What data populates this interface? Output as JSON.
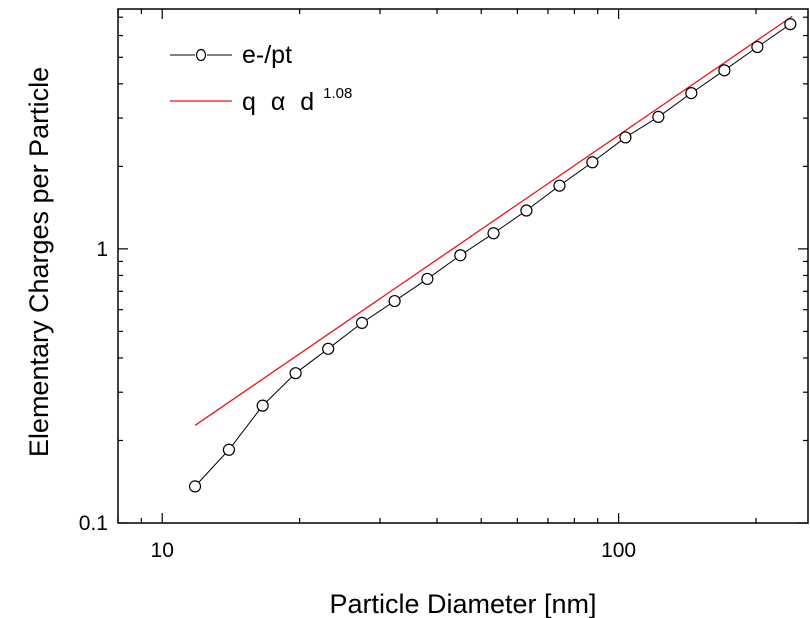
{
  "chart_data": {
    "type": "line",
    "xlabel": "Particle Diameter [nm]",
    "ylabel": "Elementary Charges per Particle",
    "xscale": "log",
    "yscale": "log",
    "xlim": [
      8,
      260
    ],
    "ylim": [
      0.1,
      7.5
    ],
    "x_ticks": [
      10,
      100
    ],
    "x_tick_labels": [
      "10",
      "100"
    ],
    "y_ticks": [
      0.1,
      1
    ],
    "y_tick_labels": [
      "0.1",
      "1"
    ],
    "legend_position": "top-left",
    "series": [
      {
        "name": "e-/pt",
        "style": "line-with-open-circles",
        "color": "#000000",
        "x": [
          11.8,
          14,
          16.6,
          19.6,
          23.1,
          27.4,
          32.3,
          38.1,
          45,
          53.2,
          62.8,
          74.2,
          87.6,
          103.5,
          122.2,
          144.3,
          170.5,
          201.4,
          237.8
        ],
        "y": [
          0.136,
          0.185,
          0.268,
          0.352,
          0.432,
          0.537,
          0.645,
          0.777,
          0.948,
          1.14,
          1.38,
          1.7,
          2.07,
          2.55,
          3.03,
          3.7,
          4.48,
          5.45,
          6.6
        ]
      },
      {
        "name": "q",
        "label_alpha": "α",
        "label_d": "d",
        "label_exponent": "1.08",
        "style": "line",
        "color": "#e8141c",
        "x": [
          11.8,
          240
        ],
        "y": [
          0.227,
          7.05
        ]
      }
    ]
  }
}
